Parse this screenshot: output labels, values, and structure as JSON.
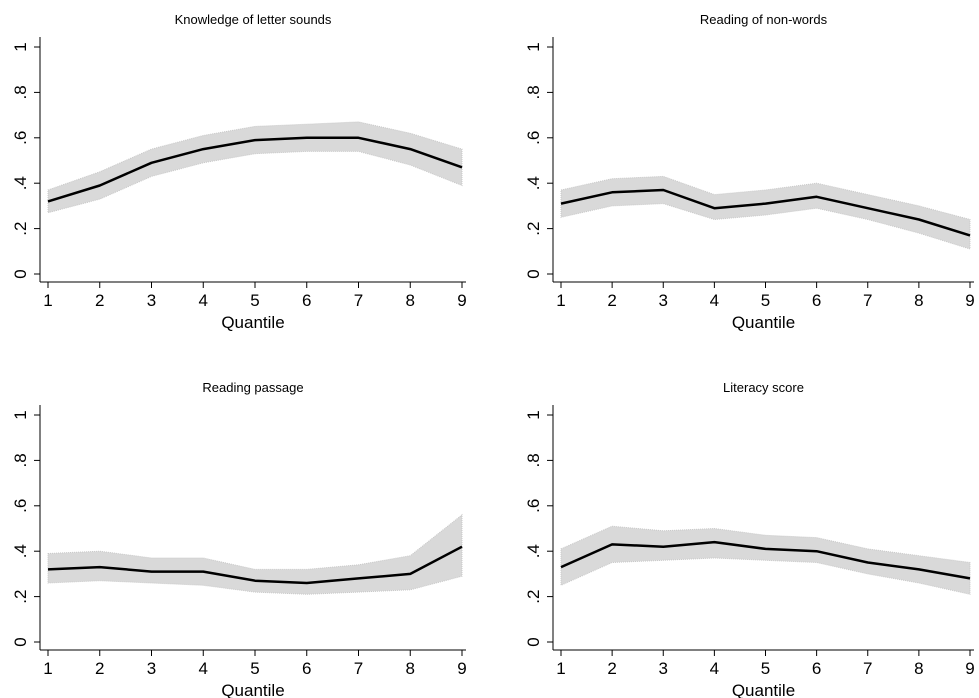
{
  "chart_data": [
    {
      "type": "line",
      "title": "Knowledge of letter sounds",
      "xlabel": "Quantile",
      "ylabel": "",
      "x": [
        1,
        2,
        3,
        4,
        5,
        6,
        7,
        8,
        9
      ],
      "xlim": [
        1,
        9
      ],
      "ylim": [
        0,
        1
      ],
      "yticks": [
        "0",
        ".2",
        ".4",
        ".6",
        ".8",
        "1"
      ],
      "series": [
        {
          "values": [
            0.32,
            0.39,
            0.49,
            0.55,
            0.59,
            0.6,
            0.6,
            0.55,
            0.47
          ],
          "lower": [
            0.27,
            0.33,
            0.43,
            0.49,
            0.53,
            0.54,
            0.54,
            0.48,
            0.39
          ],
          "upper": [
            0.37,
            0.45,
            0.55,
            0.61,
            0.65,
            0.66,
            0.67,
            0.62,
            0.55
          ]
        }
      ],
      "colors": {
        "line": "#000000",
        "band": "#d9d9d9"
      }
    },
    {
      "type": "line",
      "title": "Reading of non-words",
      "xlabel": "Quantile",
      "ylabel": "",
      "x": [
        1,
        2,
        3,
        4,
        5,
        6,
        7,
        8,
        9
      ],
      "xlim": [
        1,
        9
      ],
      "ylim": [
        0,
        1
      ],
      "yticks": [
        "0",
        ".2",
        ".4",
        ".6",
        ".8",
        "1"
      ],
      "series": [
        {
          "values": [
            0.31,
            0.36,
            0.37,
            0.29,
            0.31,
            0.34,
            0.29,
            0.24,
            0.17
          ],
          "lower": [
            0.25,
            0.3,
            0.31,
            0.24,
            0.26,
            0.29,
            0.24,
            0.18,
            0.11
          ],
          "upper": [
            0.37,
            0.42,
            0.43,
            0.35,
            0.37,
            0.4,
            0.35,
            0.3,
            0.24
          ]
        }
      ],
      "colors": {
        "line": "#000000",
        "band": "#d9d9d9"
      }
    },
    {
      "type": "line",
      "title": "Reading passage",
      "xlabel": "Quantile",
      "ylabel": "",
      "x": [
        1,
        2,
        3,
        4,
        5,
        6,
        7,
        8,
        9
      ],
      "xlim": [
        1,
        9
      ],
      "ylim": [
        0,
        1
      ],
      "yticks": [
        "0",
        ".2",
        ".4",
        ".6",
        ".8",
        "1"
      ],
      "series": [
        {
          "values": [
            0.32,
            0.33,
            0.31,
            0.31,
            0.27,
            0.26,
            0.28,
            0.3,
            0.42
          ],
          "lower": [
            0.26,
            0.27,
            0.26,
            0.25,
            0.22,
            0.21,
            0.22,
            0.23,
            0.29
          ],
          "upper": [
            0.39,
            0.4,
            0.37,
            0.37,
            0.32,
            0.32,
            0.34,
            0.38,
            0.56
          ]
        }
      ],
      "colors": {
        "line": "#000000",
        "band": "#d9d9d9"
      }
    },
    {
      "type": "line",
      "title": "Literacy score",
      "xlabel": "Quantile",
      "ylabel": "",
      "x": [
        1,
        2,
        3,
        4,
        5,
        6,
        7,
        8,
        9
      ],
      "xlim": [
        1,
        9
      ],
      "ylim": [
        0,
        1
      ],
      "yticks": [
        "0",
        ".2",
        ".4",
        ".6",
        ".8",
        "1"
      ],
      "series": [
        {
          "values": [
            0.33,
            0.43,
            0.42,
            0.44,
            0.41,
            0.4,
            0.35,
            0.32,
            0.28
          ],
          "lower": [
            0.25,
            0.35,
            0.36,
            0.37,
            0.36,
            0.35,
            0.3,
            0.26,
            0.21
          ],
          "upper": [
            0.41,
            0.51,
            0.49,
            0.5,
            0.47,
            0.46,
            0.41,
            0.38,
            0.35
          ]
        }
      ],
      "colors": {
        "line": "#000000",
        "band": "#d9d9d9"
      }
    }
  ]
}
